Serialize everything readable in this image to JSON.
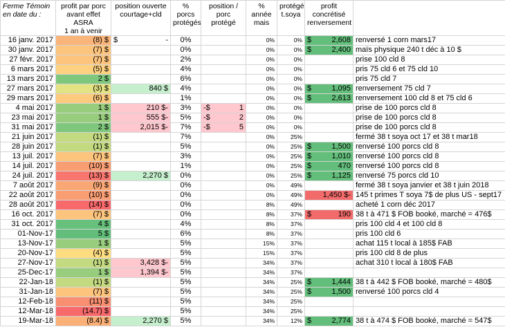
{
  "header": [
    "Ferme Témoin\nen date du :",
    "profit par porc\navant effet ASRA\n1 an à venir",
    "position ouverte\ncourtage+cld",
    "% porcs\nprotégés",
    "position /\nporc protégé",
    "% année\nmais",
    "protégé\nt.soya",
    "profit\nconcrétisé\nrenversement"
  ],
  "rows": [
    {
      "cells": [
        "16 janv. 2017",
        {
          "text": "(8) $",
          "fill": "#fbb479"
        },
        {
          "text": [
            "$",
            "-"
          ]
        },
        "0%",
        null,
        "0%",
        "0%",
        {
          "text": [
            "$",
            "2,608"
          ],
          "fill": "#63be7b"
        },
        "renversé 1 corn mars17"
      ]
    },
    {
      "cells": [
        "30 janv. 2017",
        {
          "text": "(7) $",
          "fill": "#fdc47d"
        },
        null,
        "0%",
        null,
        "0%",
        "0%",
        {
          "text": [
            "$",
            "2,400"
          ],
          "fill": "#63be7b"
        },
        "maïs physique 240 t déc à 10 $"
      ]
    },
    {
      "cells": [
        "27 févr. 2017",
        {
          "text": "(7) $",
          "fill": "#fdc47d"
        },
        null,
        "2%",
        null,
        "0%",
        "0%",
        null,
        "prise 100 cld 8"
      ]
    },
    {
      "cells": [
        "6 mars 2017",
        {
          "text": "(5) $",
          "fill": "#fdd17f"
        },
        null,
        "4%",
        null,
        "0%",
        "0%",
        null,
        "pris 75 cld 6 et 75 cld 10"
      ]
    },
    {
      "cells": [
        "13 mars 2017",
        {
          "text": "2 $",
          "fill": "#7fc77d"
        },
        null,
        "6%",
        null,
        "0%",
        "0%",
        null,
        "pris 75 cld 7"
      ]
    },
    {
      "cells": [
        "27 mars 2017",
        {
          "text": "(3) $",
          "fill": "#e3e383"
        },
        {
          "text": "840 $",
          "fill": "#c6efce"
        },
        "4%",
        null,
        "0%",
        "0%",
        {
          "text": [
            "$",
            "1,095"
          ],
          "fill": "#63be7b"
        },
        "renversement 75 cld 7"
      ]
    },
    {
      "cells": [
        "29 mars 2017",
        {
          "text": "(6) $",
          "fill": "#fdca7e"
        },
        null,
        "1%",
        null,
        "0%",
        "0%",
        {
          "text": [
            "$",
            "2,613"
          ],
          "fill": "#63be7b"
        },
        "renversement 100 cld 8 et 75  cld 6"
      ]
    },
    {
      "cells": [
        "4 mai 2017",
        {
          "text": "1 $",
          "fill": "#98cd7e"
        },
        {
          "text": "210 $-",
          "fill": "#ffc7ce"
        },
        "3%",
        {
          "text": [
            "-$",
            "1"
          ],
          "fill": "#ffc7ce"
        },
        "0%",
        "0%",
        null,
        "prise de 100 porcs cld 8"
      ]
    },
    {
      "cells": [
        "23 mai 2017",
        {
          "text": "1 $",
          "fill": "#98cd7e"
        },
        {
          "text": "555 $-",
          "fill": "#ffc7ce"
        },
        "5%",
        {
          "text": [
            "-$",
            "2"
          ],
          "fill": "#ffc7ce"
        },
        "0%",
        "0%",
        null,
        "prise de 100 porcs cld 8"
      ]
    },
    {
      "cells": [
        "31 mai 2017",
        {
          "text": "2 $",
          "fill": "#7fc77d"
        },
        {
          "text": "2,015 $-",
          "fill": "#ffc7ce"
        },
        "7%",
        {
          "text": [
            "-$",
            "5"
          ],
          "fill": "#ffc7ce"
        },
        "0%",
        "0%",
        null,
        "prise de 100 porcs cld 8"
      ]
    },
    {
      "cells": [
        "21 juin 2017",
        {
          "text": "(1) $",
          "fill": "#c4da81"
        },
        null,
        "7%",
        null,
        "0%",
        "25%",
        null,
        "fermé 38 t soya oct 17 et 38 t mar18"
      ]
    },
    {
      "cells": [
        "28 juin 2017",
        {
          "text": "(1) $",
          "fill": "#c4da81"
        },
        null,
        "5%",
        null,
        "0%",
        "25%",
        {
          "text": [
            "$",
            "1,500"
          ],
          "fill": "#63be7b"
        },
        "renversé 100 porcs cld 8"
      ]
    },
    {
      "cells": [
        "13 juil. 2017",
        {
          "text": "(7) $",
          "fill": "#fdc47d"
        },
        null,
        "3%",
        null,
        "0%",
        "25%",
        {
          "text": [
            "$",
            "1,010"
          ],
          "fill": "#63be7b"
        },
        "renversé 100 porcs cld 8"
      ]
    },
    {
      "cells": [
        "14 juil. 2017",
        {
          "text": "(10) $",
          "fill": "#f99d73"
        },
        null,
        "1%",
        null,
        "0%",
        "25%",
        {
          "text": [
            "$",
            "470"
          ],
          "fill": "#63be7b"
        },
        "renversé 100 porcs cld 8"
      ]
    },
    {
      "cells": [
        "24 juil. 2017",
        {
          "text": "(13) $",
          "fill": "#f8766d"
        },
        {
          "text": "2,270 $",
          "fill": "#c6efce"
        },
        "0%",
        null,
        "0%",
        "25%",
        {
          "text": [
            "$",
            "1,125"
          ],
          "fill": "#63be7b"
        },
        "renversé 75 porcs cld 10"
      ]
    },
    {
      "cells": [
        "7 août 2017",
        {
          "text": "(9) $",
          "fill": "#faa776"
        },
        null,
        "0%",
        null,
        "0%",
        "49%",
        null,
        "fermé 38 t soya janvier et 38 t juin 2018"
      ]
    },
    {
      "cells": [
        "22 août 2017",
        {
          "text": "(10) $",
          "fill": "#f99d73"
        },
        null,
        "0%",
        null,
        "0%",
        "49%",
        {
          "text": "1,450 $-",
          "fill": "#f26b6b"
        },
        "145 t  primes T soya 7$ de plus US - sept17"
      ]
    },
    {
      "cells": [
        "28 août 2017",
        {
          "text": "(14) $",
          "fill": "#f8696b"
        },
        null,
        "0%",
        null,
        "8%",
        "49%",
        null,
        "acheté 1 corn déc 2017"
      ]
    },
    {
      "cells": [
        "16 oct. 2017",
        {
          "text": "(7) $",
          "fill": "#fdc47d"
        },
        null,
        "0%",
        null,
        "8%",
        "37%",
        {
          "text": [
            "$",
            "190"
          ],
          "fill": "#f26b6b"
        },
        "38 t à 471 $ FOB booké, marché = 476$"
      ]
    },
    {
      "cells": [
        "31 oct. 2017",
        {
          "text": "4 $",
          "fill": "#67c07c"
        },
        null,
        "4%",
        null,
        "8%",
        "37%",
        null,
        "pris 100 cld 4  et 100 cld  8"
      ]
    },
    {
      "cells": [
        "01-Nov-17",
        {
          "text": "5 $",
          "fill": "#63be7b"
        },
        null,
        "6%",
        null,
        "8%",
        "37%",
        null,
        "pris 100 cld 6"
      ]
    },
    {
      "cells": [
        "13-Nov-17",
        {
          "text": "1 $",
          "fill": "#98cd7e"
        },
        null,
        "5%",
        null,
        "15%",
        "37%",
        null,
        "achat 115 t  local à 185$ FAB"
      ]
    },
    {
      "cells": [
        "20-Nov-17",
        {
          "text": "(4) $",
          "fill": "#fedd81"
        },
        null,
        "5%",
        null,
        "15%",
        "37%",
        null,
        "pris 100 cld 8 de plus"
      ]
    },
    {
      "cells": [
        "27-Nov-17",
        {
          "text": "(1) $",
          "fill": "#c4da81"
        },
        {
          "text": "3,428 $-",
          "fill": "#ffc7ce"
        },
        "5%",
        null,
        "34%",
        "37%",
        null,
        "achat 310 t  local à 180$ FAB"
      ]
    },
    {
      "cells": [
        "25-Dec-17",
        {
          "text": "1 $",
          "fill": "#98cd7e"
        },
        {
          "text": "1,394 $-",
          "fill": "#ffc7ce"
        },
        "5%",
        null,
        "34%",
        "37%",
        null,
        null
      ]
    },
    {
      "cells": [
        "22-Jan-18",
        {
          "text": "(1) $",
          "fill": "#c4da81"
        },
        null,
        "5%",
        null,
        "34%",
        "25%",
        {
          "text": [
            "$",
            "1,444"
          ],
          "fill": "#63be7b"
        },
        "38 t  à 442 $ FOB booké, marché = 480$"
      ]
    },
    {
      "cells": [
        "31-Jan-18",
        {
          "text": "(7) $",
          "fill": "#fdc47d"
        },
        null,
        "5%",
        null,
        "34%",
        "25%",
        {
          "text": [
            "$",
            "1,500"
          ],
          "fill": "#63be7b"
        },
        "renversé 100 porcs cld 4"
      ]
    },
    {
      "cells": [
        "12-Feb-18",
        {
          "text": "(11) $",
          "fill": "#f98f71"
        },
        null,
        "5%",
        null,
        "34%",
        "25%",
        null,
        null
      ]
    },
    {
      "cells": [
        "12-Mar-18",
        {
          "text": "(14.7) $",
          "fill": "#f8696b"
        },
        null,
        "5%",
        null,
        "34%",
        "25%",
        null,
        null
      ]
    },
    {
      "cells": [
        "19-Mar-18",
        {
          "text": "(8.4) $",
          "fill": "#fbb077"
        },
        {
          "text": "2,270 $",
          "fill": "#c6efce"
        },
        "5%",
        null,
        "34%",
        "12%",
        {
          "text": [
            "$",
            "2,774"
          ],
          "fill": "#63be7b"
        },
        "38 t  à 474 $ FOB booké, marché = 547$"
      ]
    }
  ]
}
